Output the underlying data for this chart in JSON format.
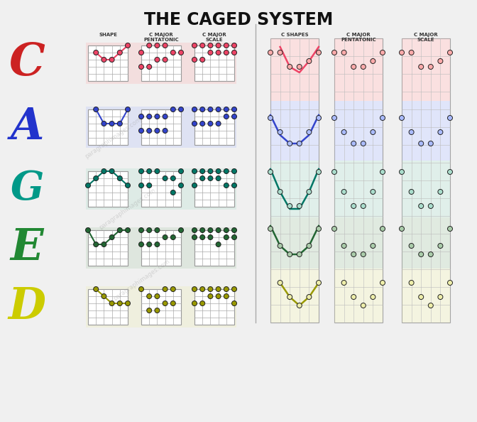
{
  "title": "THE CAGED SYSTEM",
  "bg_color": "#f0f0f0",
  "title_color": "#111111",
  "letters": [
    "C",
    "A",
    "G",
    "E",
    "D"
  ],
  "letter_colors": [
    "#cc2222",
    "#2233cc",
    "#009988",
    "#228833",
    "#cccc00"
  ],
  "col_headers_left": [
    "SHAPE",
    "C MAJOR\nPENTATONIC",
    "C MAJOR\nSCALE"
  ],
  "col_headers_right": [
    "C SHAPES",
    "C MAJOR\nPENTATONIC",
    "C MAJOR\nSCALE"
  ],
  "shape_colors": [
    "#ffaaaa",
    "#aabbff",
    "#aaddcc",
    "#aaccaa",
    "#eeeeaa"
  ],
  "mid_colors": [
    "#ee4466",
    "#3344cc",
    "#007766",
    "#226633",
    "#999900"
  ],
  "watermark": "paragraphimages.com"
}
